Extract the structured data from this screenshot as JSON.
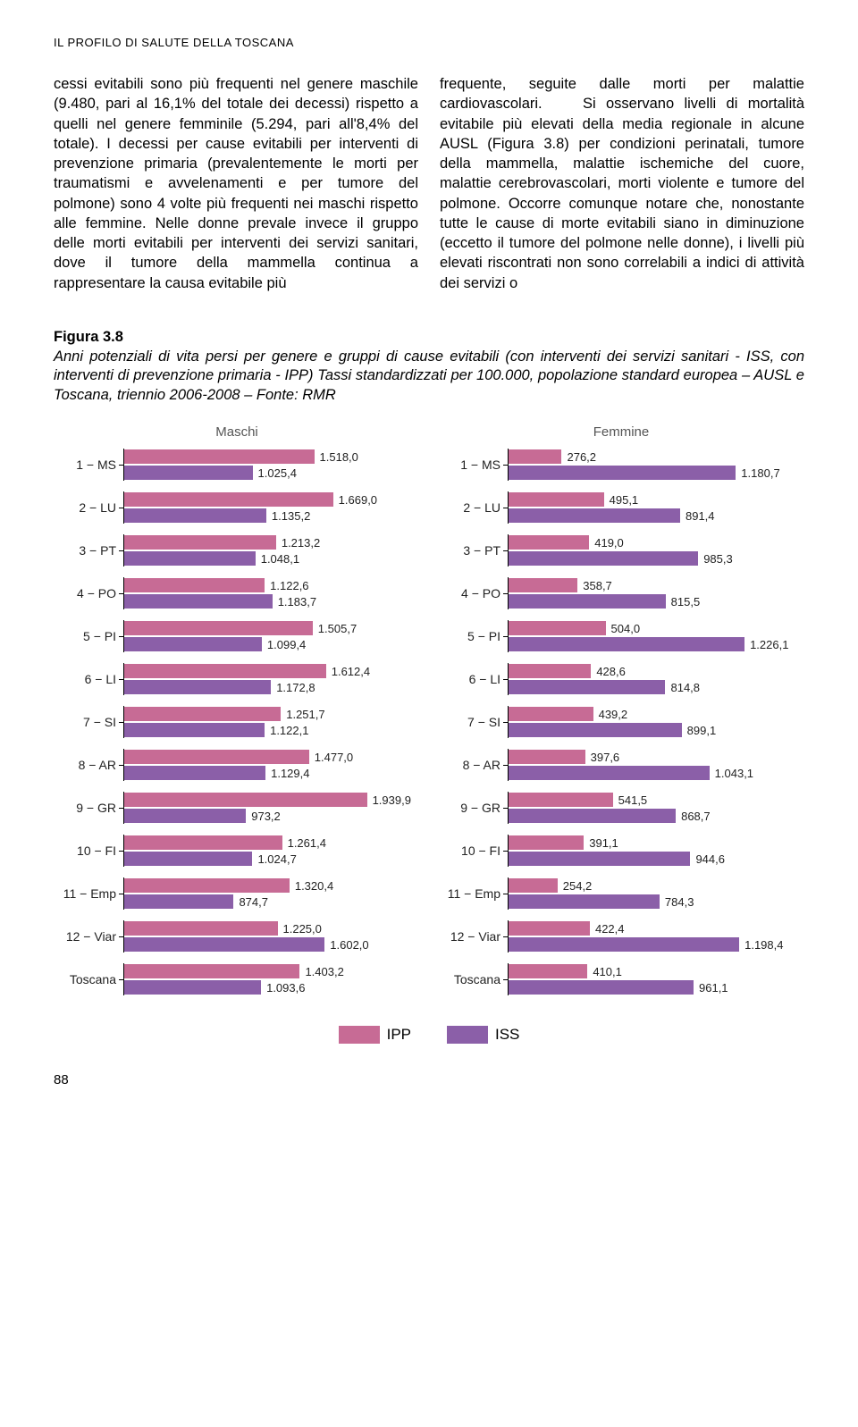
{
  "header": "IL PROFILO DI SALUTE DELLA TOSCANA",
  "colLeft": "cessi evitabili sono più frequenti nel genere maschile (9.480, pari al 16,1% del totale dei decessi) rispetto a quelli nel genere femminile (5.294, pari all'8,4% del totale). I decessi per cause evitabili per interventi di prevenzione primaria (prevalentemente le morti per traumatismi e avvelenamenti e per tumore del polmone) sono 4 volte più frequenti nei maschi rispetto alle femmine. Nelle donne prevale invece il gruppo delle morti evitabili per interventi dei servizi sanitari, dove il tumore della mammella continua a rappresentare la causa evitabile più",
  "colRight": "frequente, seguite dalle morti per malattie cardiovascolari.\n   Si osservano livelli di mortalità evitabile più elevati della media regionale in alcune AUSL (Figura 3.8) per condizioni perinatali, tumore della mammella, malattie ischemiche del cuore, malattie cerebrovascolari, morti violente e tumore del polmone. Occorre comunque notare che, nonostante tutte le cause di morte evitabili siano in diminuzione (eccetto il tumore del polmone nelle donne), i livelli più elevati riscontrati non sono correlabili a indici di attività dei servizi o",
  "figure": {
    "title": "Figura 3.8",
    "caption": "Anni potenziali di vita persi per genere e gruppi di cause evitabili (con interventi dei servizi sanitari - ISS, con interventi di prevenzione primaria - IPP) Tassi standardizzati per 100.000, popolazione standard europea – AUSL e Toscana, triennio 2006-2008 – Fonte: RMR"
  },
  "chart": {
    "titleM": "Maschi",
    "titleF": "Femmine",
    "maxM": 2000,
    "maxF": 1300,
    "colors": {
      "ipp": "#c76b95",
      "iss": "#8b5fa8"
    },
    "categories": [
      "1 − MS",
      "2 − LU",
      "3 − PT",
      "4 − PO",
      "5 − PI",
      "6 − LI",
      "7 − SI",
      "8 − AR",
      "9 − GR",
      "10 − FI",
      "11 − Emp",
      "12 − Viar",
      "Toscana"
    ],
    "maschi": [
      {
        "ipp": 1518.0,
        "ipp_lbl": "1.518,0",
        "iss": 1025.4,
        "iss_lbl": "1.025,4"
      },
      {
        "ipp": 1669.0,
        "ipp_lbl": "1.669,0",
        "iss": 1135.2,
        "iss_lbl": "1.135,2"
      },
      {
        "ipp": 1213.2,
        "ipp_lbl": "1.213,2",
        "iss": 1048.1,
        "iss_lbl": "1.048,1"
      },
      {
        "ipp": 1122.6,
        "ipp_lbl": "1.122,6",
        "iss": 1183.7,
        "iss_lbl": "1.183,7"
      },
      {
        "ipp": 1505.7,
        "ipp_lbl": "1.505,7",
        "iss": 1099.4,
        "iss_lbl": "1.099,4"
      },
      {
        "ipp": 1612.4,
        "ipp_lbl": "1.612,4",
        "iss": 1172.8,
        "iss_lbl": "1.172,8"
      },
      {
        "ipp": 1251.7,
        "ipp_lbl": "1.251,7",
        "iss": 1122.1,
        "iss_lbl": "1.122,1"
      },
      {
        "ipp": 1477.0,
        "ipp_lbl": "1.477,0",
        "iss": 1129.4,
        "iss_lbl": "1.129,4"
      },
      {
        "ipp": 1939.9,
        "ipp_lbl": "1.939,9",
        "iss": 973.2,
        "iss_lbl": "973,2"
      },
      {
        "ipp": 1261.4,
        "ipp_lbl": "1.261,4",
        "iss": 1024.7,
        "iss_lbl": "1.024,7"
      },
      {
        "ipp": 1320.4,
        "ipp_lbl": "1.320,4",
        "iss": 874.7,
        "iss_lbl": "874,7"
      },
      {
        "ipp": 1225.0,
        "ipp_lbl": "1.225,0",
        "iss": 1602.0,
        "iss_lbl": "1.602,0"
      },
      {
        "ipp": 1403.2,
        "ipp_lbl": "1.403,2",
        "iss": 1093.6,
        "iss_lbl": "1.093,6"
      }
    ],
    "femmine": [
      {
        "ipp": 276.2,
        "ipp_lbl": "276,2",
        "iss": 1180.7,
        "iss_lbl": "1.180,7"
      },
      {
        "ipp": 495.1,
        "ipp_lbl": "495,1",
        "iss": 891.4,
        "iss_lbl": "891,4"
      },
      {
        "ipp": 419.0,
        "ipp_lbl": "419,0",
        "iss": 985.3,
        "iss_lbl": "985,3"
      },
      {
        "ipp": 358.7,
        "ipp_lbl": "358,7",
        "iss": 815.5,
        "iss_lbl": "815,5"
      },
      {
        "ipp": 504.0,
        "ipp_lbl": "504,0",
        "iss": 1226.1,
        "iss_lbl": "1.226,1"
      },
      {
        "ipp": 428.6,
        "ipp_lbl": "428,6",
        "iss": 814.8,
        "iss_lbl": "814,8"
      },
      {
        "ipp": 439.2,
        "ipp_lbl": "439,2",
        "iss": 899.1,
        "iss_lbl": "899,1"
      },
      {
        "ipp": 397.6,
        "ipp_lbl": "397,6",
        "iss": 1043.1,
        "iss_lbl": "1.043,1"
      },
      {
        "ipp": 541.5,
        "ipp_lbl": "541,5",
        "iss": 868.7,
        "iss_lbl": "868,7"
      },
      {
        "ipp": 391.1,
        "ipp_lbl": "391,1",
        "iss": 944.6,
        "iss_lbl": "944,6"
      },
      {
        "ipp": 254.2,
        "ipp_lbl": "254,2",
        "iss": 784.3,
        "iss_lbl": "784,3"
      },
      {
        "ipp": 422.4,
        "ipp_lbl": "422,4",
        "iss": 1198.4,
        "iss_lbl": "1.198,4"
      },
      {
        "ipp": 410.1,
        "ipp_lbl": "410,1",
        "iss": 961.1,
        "iss_lbl": "961,1"
      }
    ]
  },
  "legend": {
    "ipp": "IPP",
    "iss": "ISS"
  },
  "pageNum": "88"
}
